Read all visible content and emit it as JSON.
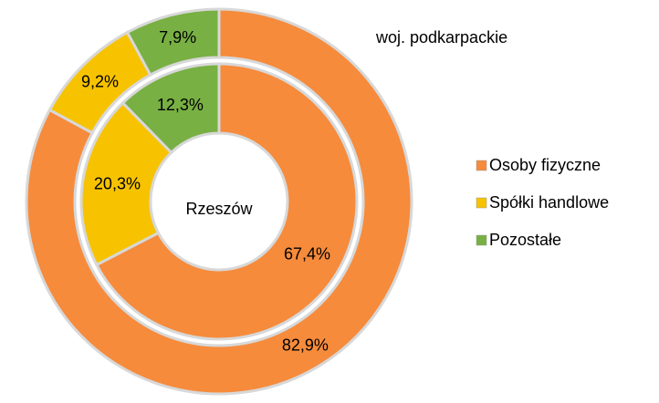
{
  "chart_data": {
    "type": "doughnut",
    "categories": [
      "Osoby fizyczne",
      "Spółki handlowe",
      "Pozostałe"
    ],
    "colors": [
      "#f68b3c",
      "#f7c300",
      "#78b043"
    ],
    "series": [
      {
        "name": "woj. podkarpackie",
        "values": [
          82.9,
          9.2,
          7.9
        ],
        "value_labels": [
          "82,9%",
          "9,2%",
          "7,9%"
        ]
      },
      {
        "name": "Rzeszów",
        "values": [
          67.4,
          20.3,
          12.3
        ],
        "value_labels": [
          "67,4%",
          "20,3%",
          "12,3%"
        ]
      }
    ],
    "legend": "right"
  }
}
